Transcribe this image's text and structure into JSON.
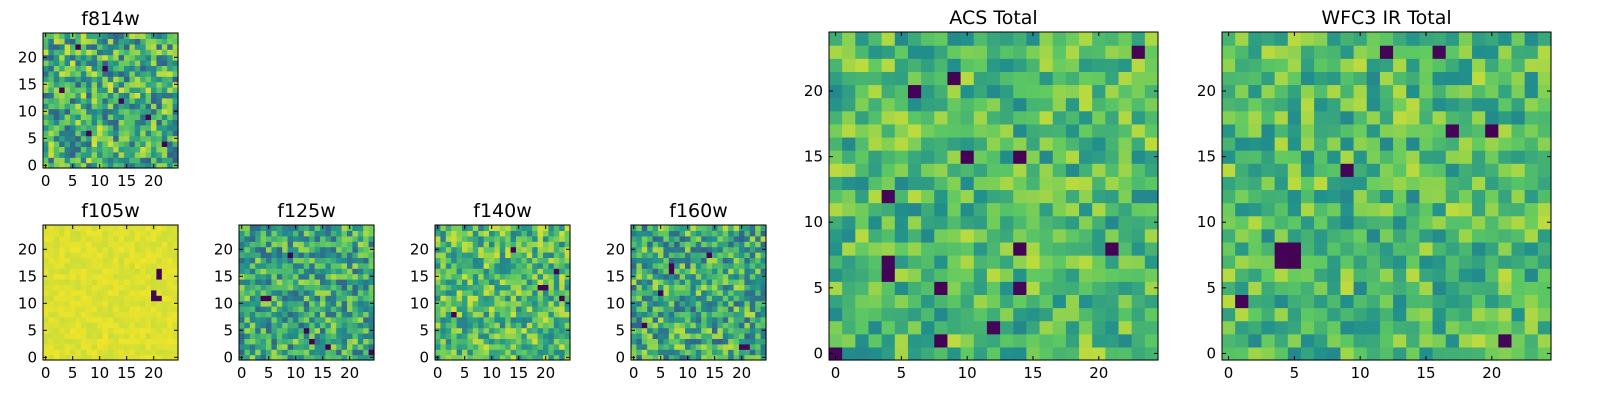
{
  "colormap": {
    "name": "viridis",
    "stops": [
      "#440154",
      "#3b528b",
      "#21918c",
      "#5ec962",
      "#fde725"
    ]
  },
  "chart_data": [
    {
      "type": "heatmap",
      "key": "f814w",
      "title": "f814w",
      "grid_size": 25,
      "xlim": [
        0,
        24
      ],
      "ylim": [
        0,
        24
      ],
      "xticks": [
        "0",
        "5",
        "10",
        "15",
        "20"
      ],
      "yticks": [
        "0",
        "5",
        "10",
        "15",
        "20"
      ],
      "value_range": [
        0,
        1
      ],
      "mean_level": 0.62,
      "spread": 0.32,
      "dark_cells": [
        [
          6,
          22
        ],
        [
          11,
          18
        ],
        [
          3,
          14
        ],
        [
          19,
          9
        ],
        [
          8,
          6
        ],
        [
          22,
          4
        ],
        [
          14,
          12
        ]
      ]
    },
    {
      "type": "heatmap",
      "key": "f105w",
      "title": "f105w",
      "grid_size": 25,
      "xlim": [
        0,
        24
      ],
      "ylim": [
        0,
        24
      ],
      "xticks": [
        "0",
        "5",
        "10",
        "15",
        "20"
      ],
      "yticks": [
        "0",
        "5",
        "10",
        "15",
        "20"
      ],
      "value_range": [
        0,
        1
      ],
      "mean_level": 0.95,
      "spread": 0.03,
      "dark_cells": [
        [
          21,
          16
        ],
        [
          21,
          15
        ],
        [
          20,
          12
        ],
        [
          20,
          11
        ],
        [
          21,
          11
        ]
      ]
    },
    {
      "type": "heatmap",
      "key": "f125w",
      "title": "f125w",
      "grid_size": 25,
      "xlim": [
        0,
        24
      ],
      "ylim": [
        0,
        24
      ],
      "xticks": [
        "0",
        "5",
        "10",
        "15",
        "20"
      ],
      "yticks": [
        "0",
        "5",
        "10",
        "15",
        "20"
      ],
      "value_range": [
        0,
        1
      ],
      "mean_level": 0.6,
      "spread": 0.28,
      "dark_cells": [
        [
          4,
          11
        ],
        [
          5,
          11
        ],
        [
          13,
          3
        ],
        [
          16,
          2
        ],
        [
          24,
          1
        ],
        [
          9,
          19
        ],
        [
          12,
          5
        ]
      ]
    },
    {
      "type": "heatmap",
      "key": "f140w",
      "title": "f140w",
      "grid_size": 25,
      "xlim": [
        0,
        24
      ],
      "ylim": [
        0,
        24
      ],
      "xticks": [
        "0",
        "5",
        "10",
        "15",
        "20"
      ],
      "yticks": [
        "0",
        "5",
        "10",
        "15",
        "20"
      ],
      "value_range": [
        0,
        1
      ],
      "mean_level": 0.68,
      "spread": 0.25,
      "dark_cells": [
        [
          19,
          13
        ],
        [
          20,
          13
        ],
        [
          22,
          16
        ],
        [
          23,
          11
        ],
        [
          3,
          8
        ],
        [
          14,
          20
        ]
      ]
    },
    {
      "type": "heatmap",
      "key": "f160w",
      "title": "f160w",
      "grid_size": 25,
      "xlim": [
        0,
        24
      ],
      "ylim": [
        0,
        24
      ],
      "xticks": [
        "0",
        "5",
        "10",
        "15",
        "20"
      ],
      "yticks": [
        "0",
        "5",
        "10",
        "15",
        "20"
      ],
      "value_range": [
        0,
        1
      ],
      "mean_level": 0.6,
      "spread": 0.3,
      "dark_cells": [
        [
          7,
          17
        ],
        [
          7,
          16
        ],
        [
          20,
          2
        ],
        [
          21,
          2
        ],
        [
          5,
          12
        ],
        [
          14,
          19
        ],
        [
          2,
          6
        ]
      ]
    },
    {
      "type": "heatmap",
      "key": "acs_total",
      "title": "ACS Total",
      "grid_size": 25,
      "xlim": [
        0,
        24
      ],
      "ylim": [
        0,
        24
      ],
      "xticks": [
        "0",
        "5",
        "10",
        "15",
        "20"
      ],
      "yticks": [
        "0",
        "5",
        "10",
        "15",
        "20"
      ],
      "value_range": [
        0,
        1
      ],
      "mean_level": 0.68,
      "spread": 0.22,
      "dark_cells": [
        [
          23,
          23
        ],
        [
          9,
          21
        ],
        [
          6,
          20
        ],
        [
          10,
          15
        ],
        [
          14,
          15
        ],
        [
          4,
          12
        ],
        [
          14,
          8
        ],
        [
          21,
          8
        ],
        [
          4,
          7
        ],
        [
          4,
          6
        ],
        [
          8,
          5
        ],
        [
          14,
          5
        ],
        [
          0,
          0
        ],
        [
          8,
          1
        ],
        [
          12,
          2
        ]
      ]
    },
    {
      "type": "heatmap",
      "key": "wfc3_ir_total",
      "title": "WFC3 IR Total",
      "grid_size": 25,
      "xlim": [
        0,
        24
      ],
      "ylim": [
        0,
        24
      ],
      "xticks": [
        "0",
        "5",
        "10",
        "15",
        "20"
      ],
      "yticks": [
        "0",
        "5",
        "10",
        "15",
        "20"
      ],
      "value_range": [
        0,
        1
      ],
      "mean_level": 0.68,
      "spread": 0.22,
      "dark_cells": [
        [
          12,
          23
        ],
        [
          16,
          23
        ],
        [
          17,
          17
        ],
        [
          20,
          17
        ],
        [
          5,
          8
        ],
        [
          4,
          8
        ],
        [
          5,
          7
        ],
        [
          4,
          7
        ],
        [
          1,
          4
        ],
        [
          21,
          1
        ],
        [
          9,
          14
        ]
      ]
    }
  ]
}
